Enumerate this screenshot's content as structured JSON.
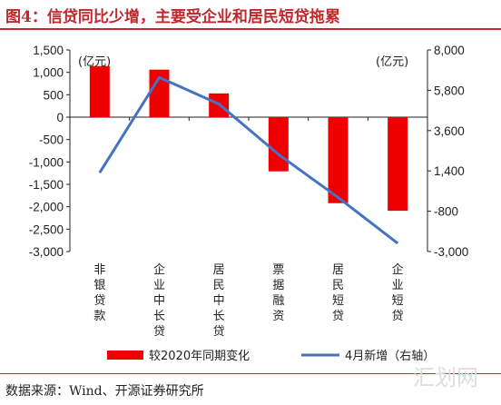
{
  "header": {
    "title": "图4：信贷同比少增，主要受企业和居民短贷拖累"
  },
  "footer": {
    "source": "数据来源：Wind、开源证券研究所",
    "watermark": "汇划网"
  },
  "colors": {
    "bar": "#ee0000",
    "line": "#4472c4",
    "title": "#c0282d"
  },
  "chart_data": {
    "type": "bar",
    "categories": [
      "非银贷款",
      "企业中长贷",
      "居民中长贷",
      "票据融资",
      "居民短贷",
      "企业短贷"
    ],
    "left_axis": {
      "unit": "(亿元)",
      "ylim": [
        -3000,
        1500
      ],
      "ticks": [
        1500,
        1000,
        500,
        0,
        -500,
        -1000,
        -1500,
        -2000,
        -2500,
        -3000
      ],
      "tick_labels": [
        "1,500",
        "1,000",
        "500",
        "0",
        "-500",
        "-1,000",
        "-1,500",
        "-2,000",
        "-2,500",
        "-3,000"
      ]
    },
    "right_axis": {
      "unit": "(亿元)",
      "ylim": [
        -3000,
        8000
      ],
      "ticks": [
        8000,
        5800,
        3600,
        1400,
        -800,
        -3000
      ],
      "tick_labels": [
        "8,000",
        "5,800",
        "3,600",
        "1,400",
        "-800",
        "-3,000"
      ]
    },
    "series": [
      {
        "name": "较2020年同期变化",
        "type": "bar",
        "axis": "left",
        "values": [
          1140,
          1060,
          530,
          -1210,
          -1920,
          -2090
        ]
      },
      {
        "name": "4月新增（右轴）",
        "type": "line",
        "axis": "right",
        "values": [
          1300,
          6500,
          5050,
          2300,
          -50,
          -2550
        ]
      }
    ],
    "legend": "bottom",
    "grid": false
  }
}
